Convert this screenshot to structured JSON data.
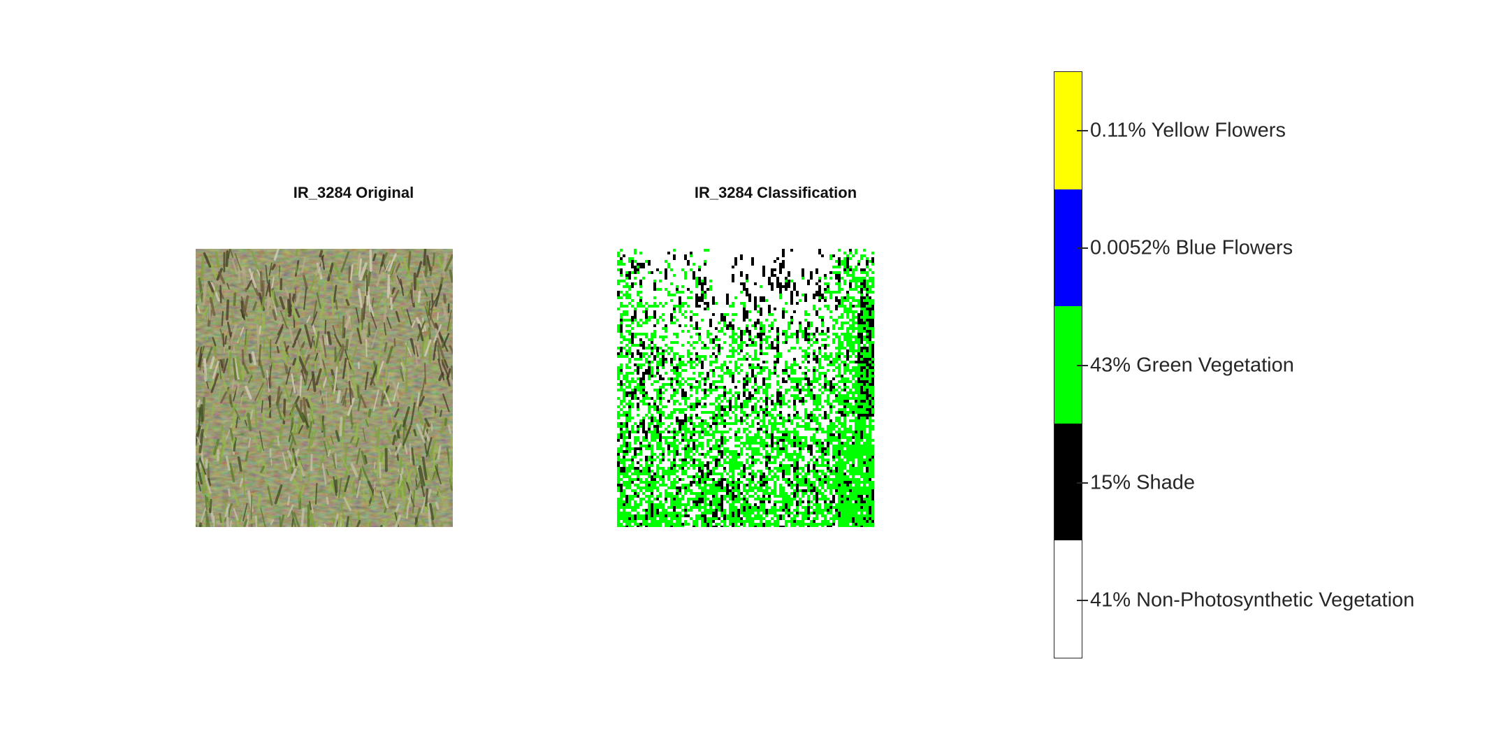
{
  "panels": {
    "original": {
      "title": "IR_3284 Original"
    },
    "classification": {
      "title": "IR_3284 Classification"
    }
  },
  "colorbar": {
    "classes": [
      {
        "label": "0.11% Yellow Flowers",
        "color": "#ffff00"
      },
      {
        "label": "0.0052% Blue Flowers",
        "color": "#0000ff"
      },
      {
        "label": "43% Green Vegetation",
        "color": "#00ff00"
      },
      {
        "label": "15% Shade",
        "color": "#000000"
      },
      {
        "label": "41% Non-Photosynthetic Vegetation",
        "color": "#ffffff"
      }
    ]
  }
}
